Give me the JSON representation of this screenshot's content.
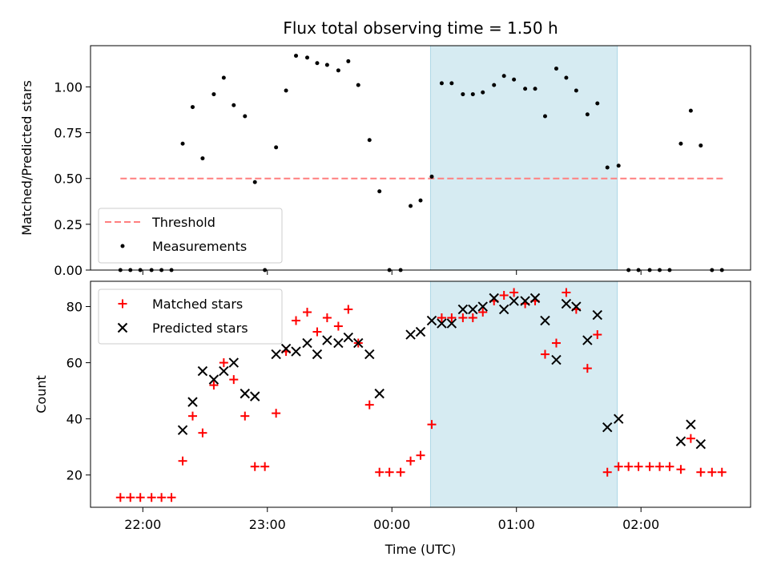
{
  "chart_data": {
    "title": "Flux total observing time = 1.50 h",
    "xlabel": "Time (UTC)",
    "x_unit": "hours (UTC clock time; values past 24 are after midnight)",
    "xlim": [
      21.58,
      26.88
    ],
    "x_ticks": [
      {
        "value": 22.0,
        "label": "22:00"
      },
      {
        "value": 23.0,
        "label": "23:00"
      },
      {
        "value": 24.0,
        "label": "00:00"
      },
      {
        "value": 25.0,
        "label": "01:00"
      },
      {
        "value": 26.0,
        "label": "02:00"
      }
    ],
    "highlight_span": {
      "x0": 24.31,
      "x1": 25.81,
      "color": "#add8e6"
    },
    "panels": [
      {
        "type": "scatter",
        "ylabel": "Matched/Predicted stars",
        "ylim": [
          0,
          1.225
        ],
        "y_ticks": [
          {
            "value": 0.0,
            "label": "0.00"
          },
          {
            "value": 0.25,
            "label": "0.25"
          },
          {
            "value": 0.5,
            "label": "0.50"
          },
          {
            "value": 0.75,
            "label": "0.75"
          },
          {
            "value": 1.0,
            "label": "1.00"
          }
        ],
        "threshold": {
          "label": "Threshold",
          "value": 0.5,
          "x_range": [
            21.82,
            26.66
          ],
          "color": "#ff7f7f"
        },
        "legend": {
          "position": "lower-left"
        },
        "series": [
          {
            "name": "Measurements",
            "marker": "dot",
            "color": "#000000",
            "points": [
              [
                21.82,
                0.0
              ],
              [
                21.9,
                0.0
              ],
              [
                21.98,
                0.0
              ],
              [
                22.07,
                0.0
              ],
              [
                22.15,
                0.0
              ],
              [
                22.23,
                0.0
              ],
              [
                22.32,
                0.69
              ],
              [
                22.4,
                0.89
              ],
              [
                22.48,
                0.61
              ],
              [
                22.57,
                0.96
              ],
              [
                22.65,
                1.05
              ],
              [
                22.73,
                0.9
              ],
              [
                22.82,
                0.84
              ],
              [
                22.9,
                0.48
              ],
              [
                22.98,
                0.0
              ],
              [
                23.07,
                0.67
              ],
              [
                23.15,
                0.98
              ],
              [
                23.23,
                1.17
              ],
              [
                23.32,
                1.16
              ],
              [
                23.4,
                1.13
              ],
              [
                23.48,
                1.12
              ],
              [
                23.57,
                1.09
              ],
              [
                23.65,
                1.14
              ],
              [
                23.73,
                1.01
              ],
              [
                23.82,
                0.71
              ],
              [
                23.9,
                0.43
              ],
              [
                23.98,
                0.0
              ],
              [
                24.07,
                0.0
              ],
              [
                24.15,
                0.35
              ],
              [
                24.23,
                0.38
              ],
              [
                24.32,
                0.51
              ],
              [
                24.4,
                1.02
              ],
              [
                24.48,
                1.02
              ],
              [
                24.57,
                0.96
              ],
              [
                24.65,
                0.96
              ],
              [
                24.73,
                0.97
              ],
              [
                24.82,
                1.01
              ],
              [
                24.9,
                1.06
              ],
              [
                24.98,
                1.04
              ],
              [
                25.07,
                0.99
              ],
              [
                25.15,
                0.99
              ],
              [
                25.23,
                0.84
              ],
              [
                25.32,
                1.1
              ],
              [
                25.4,
                1.05
              ],
              [
                25.48,
                0.98
              ],
              [
                25.57,
                0.85
              ],
              [
                25.65,
                0.91
              ],
              [
                25.73,
                0.56
              ],
              [
                25.82,
                0.57
              ],
              [
                25.9,
                0.0
              ],
              [
                25.98,
                0.0
              ],
              [
                26.07,
                0.0
              ],
              [
                26.15,
                0.0
              ],
              [
                26.23,
                0.0
              ],
              [
                26.32,
                0.69
              ],
              [
                26.4,
                0.87
              ],
              [
                26.48,
                0.68
              ],
              [
                26.57,
                0.0
              ],
              [
                26.65,
                0.0
              ]
            ]
          }
        ]
      },
      {
        "type": "scatter",
        "ylabel": "Count",
        "ylim": [
          8.5,
          89
        ],
        "y_ticks": [
          {
            "value": 20,
            "label": "20"
          },
          {
            "value": 40,
            "label": "40"
          },
          {
            "value": 60,
            "label": "60"
          },
          {
            "value": 80,
            "label": "80"
          }
        ],
        "legend": {
          "position": "upper-left"
        },
        "series": [
          {
            "name": "Matched stars",
            "marker": "plus",
            "color": "#ff0000",
            "points": [
              [
                21.82,
                12
              ],
              [
                21.9,
                12
              ],
              [
                21.98,
                12
              ],
              [
                22.07,
                12
              ],
              [
                22.15,
                12
              ],
              [
                22.23,
                12
              ],
              [
                22.32,
                25
              ],
              [
                22.4,
                41
              ],
              [
                22.48,
                35
              ],
              [
                22.57,
                52
              ],
              [
                22.65,
                60
              ],
              [
                22.73,
                54
              ],
              [
                22.82,
                41
              ],
              [
                22.9,
                23
              ],
              [
                22.98,
                23
              ],
              [
                23.07,
                42
              ],
              [
                23.15,
                64
              ],
              [
                23.23,
                75
              ],
              [
                23.32,
                78
              ],
              [
                23.4,
                71
              ],
              [
                23.48,
                76
              ],
              [
                23.57,
                73
              ],
              [
                23.65,
                79
              ],
              [
                23.73,
                67
              ],
              [
                23.82,
                45
              ],
              [
                23.9,
                21
              ],
              [
                23.98,
                21
              ],
              [
                24.07,
                21
              ],
              [
                24.15,
                25
              ],
              [
                24.23,
                27
              ],
              [
                24.32,
                38
              ],
              [
                24.4,
                76
              ],
              [
                24.48,
                76
              ],
              [
                24.57,
                76
              ],
              [
                24.65,
                76
              ],
              [
                24.73,
                78
              ],
              [
                24.82,
                82
              ],
              [
                24.9,
                84
              ],
              [
                24.98,
                85
              ],
              [
                25.07,
                81
              ],
              [
                25.15,
                82
              ],
              [
                25.23,
                63
              ],
              [
                25.32,
                67
              ],
              [
                25.4,
                85
              ],
              [
                25.48,
                79
              ],
              [
                25.57,
                58
              ],
              [
                25.65,
                70
              ],
              [
                25.73,
                21
              ],
              [
                25.82,
                23
              ],
              [
                25.9,
                23
              ],
              [
                25.98,
                23
              ],
              [
                26.07,
                23
              ],
              [
                26.15,
                23
              ],
              [
                26.23,
                23
              ],
              [
                26.32,
                22
              ],
              [
                26.4,
                33
              ],
              [
                26.48,
                21
              ],
              [
                26.57,
                21
              ],
              [
                26.65,
                21
              ]
            ]
          },
          {
            "name": "Predicted stars",
            "marker": "x",
            "color": "#000000",
            "points": [
              [
                22.32,
                36
              ],
              [
                22.4,
                46
              ],
              [
                22.48,
                57
              ],
              [
                22.57,
                54
              ],
              [
                22.65,
                57
              ],
              [
                22.73,
                60
              ],
              [
                22.82,
                49
              ],
              [
                22.9,
                48
              ],
              [
                23.07,
                63
              ],
              [
                23.15,
                65
              ],
              [
                23.23,
                64
              ],
              [
                23.32,
                67
              ],
              [
                23.4,
                63
              ],
              [
                23.48,
                68
              ],
              [
                23.57,
                67
              ],
              [
                23.65,
                69
              ],
              [
                23.73,
                67
              ],
              [
                23.82,
                63
              ],
              [
                23.9,
                49
              ],
              [
                24.15,
                70
              ],
              [
                24.23,
                71
              ],
              [
                24.32,
                75
              ],
              [
                24.4,
                74
              ],
              [
                24.48,
                74
              ],
              [
                24.57,
                79
              ],
              [
                24.65,
                79
              ],
              [
                24.73,
                80
              ],
              [
                24.82,
                83
              ],
              [
                24.9,
                79
              ],
              [
                24.98,
                82
              ],
              [
                25.07,
                82
              ],
              [
                25.15,
                83
              ],
              [
                25.23,
                75
              ],
              [
                25.32,
                61
              ],
              [
                25.4,
                81
              ],
              [
                25.48,
                80
              ],
              [
                25.57,
                68
              ],
              [
                25.65,
                77
              ],
              [
                25.73,
                37
              ],
              [
                25.82,
                40
              ],
              [
                26.32,
                32
              ],
              [
                26.4,
                38
              ],
              [
                26.48,
                31
              ]
            ]
          }
        ]
      }
    ]
  }
}
